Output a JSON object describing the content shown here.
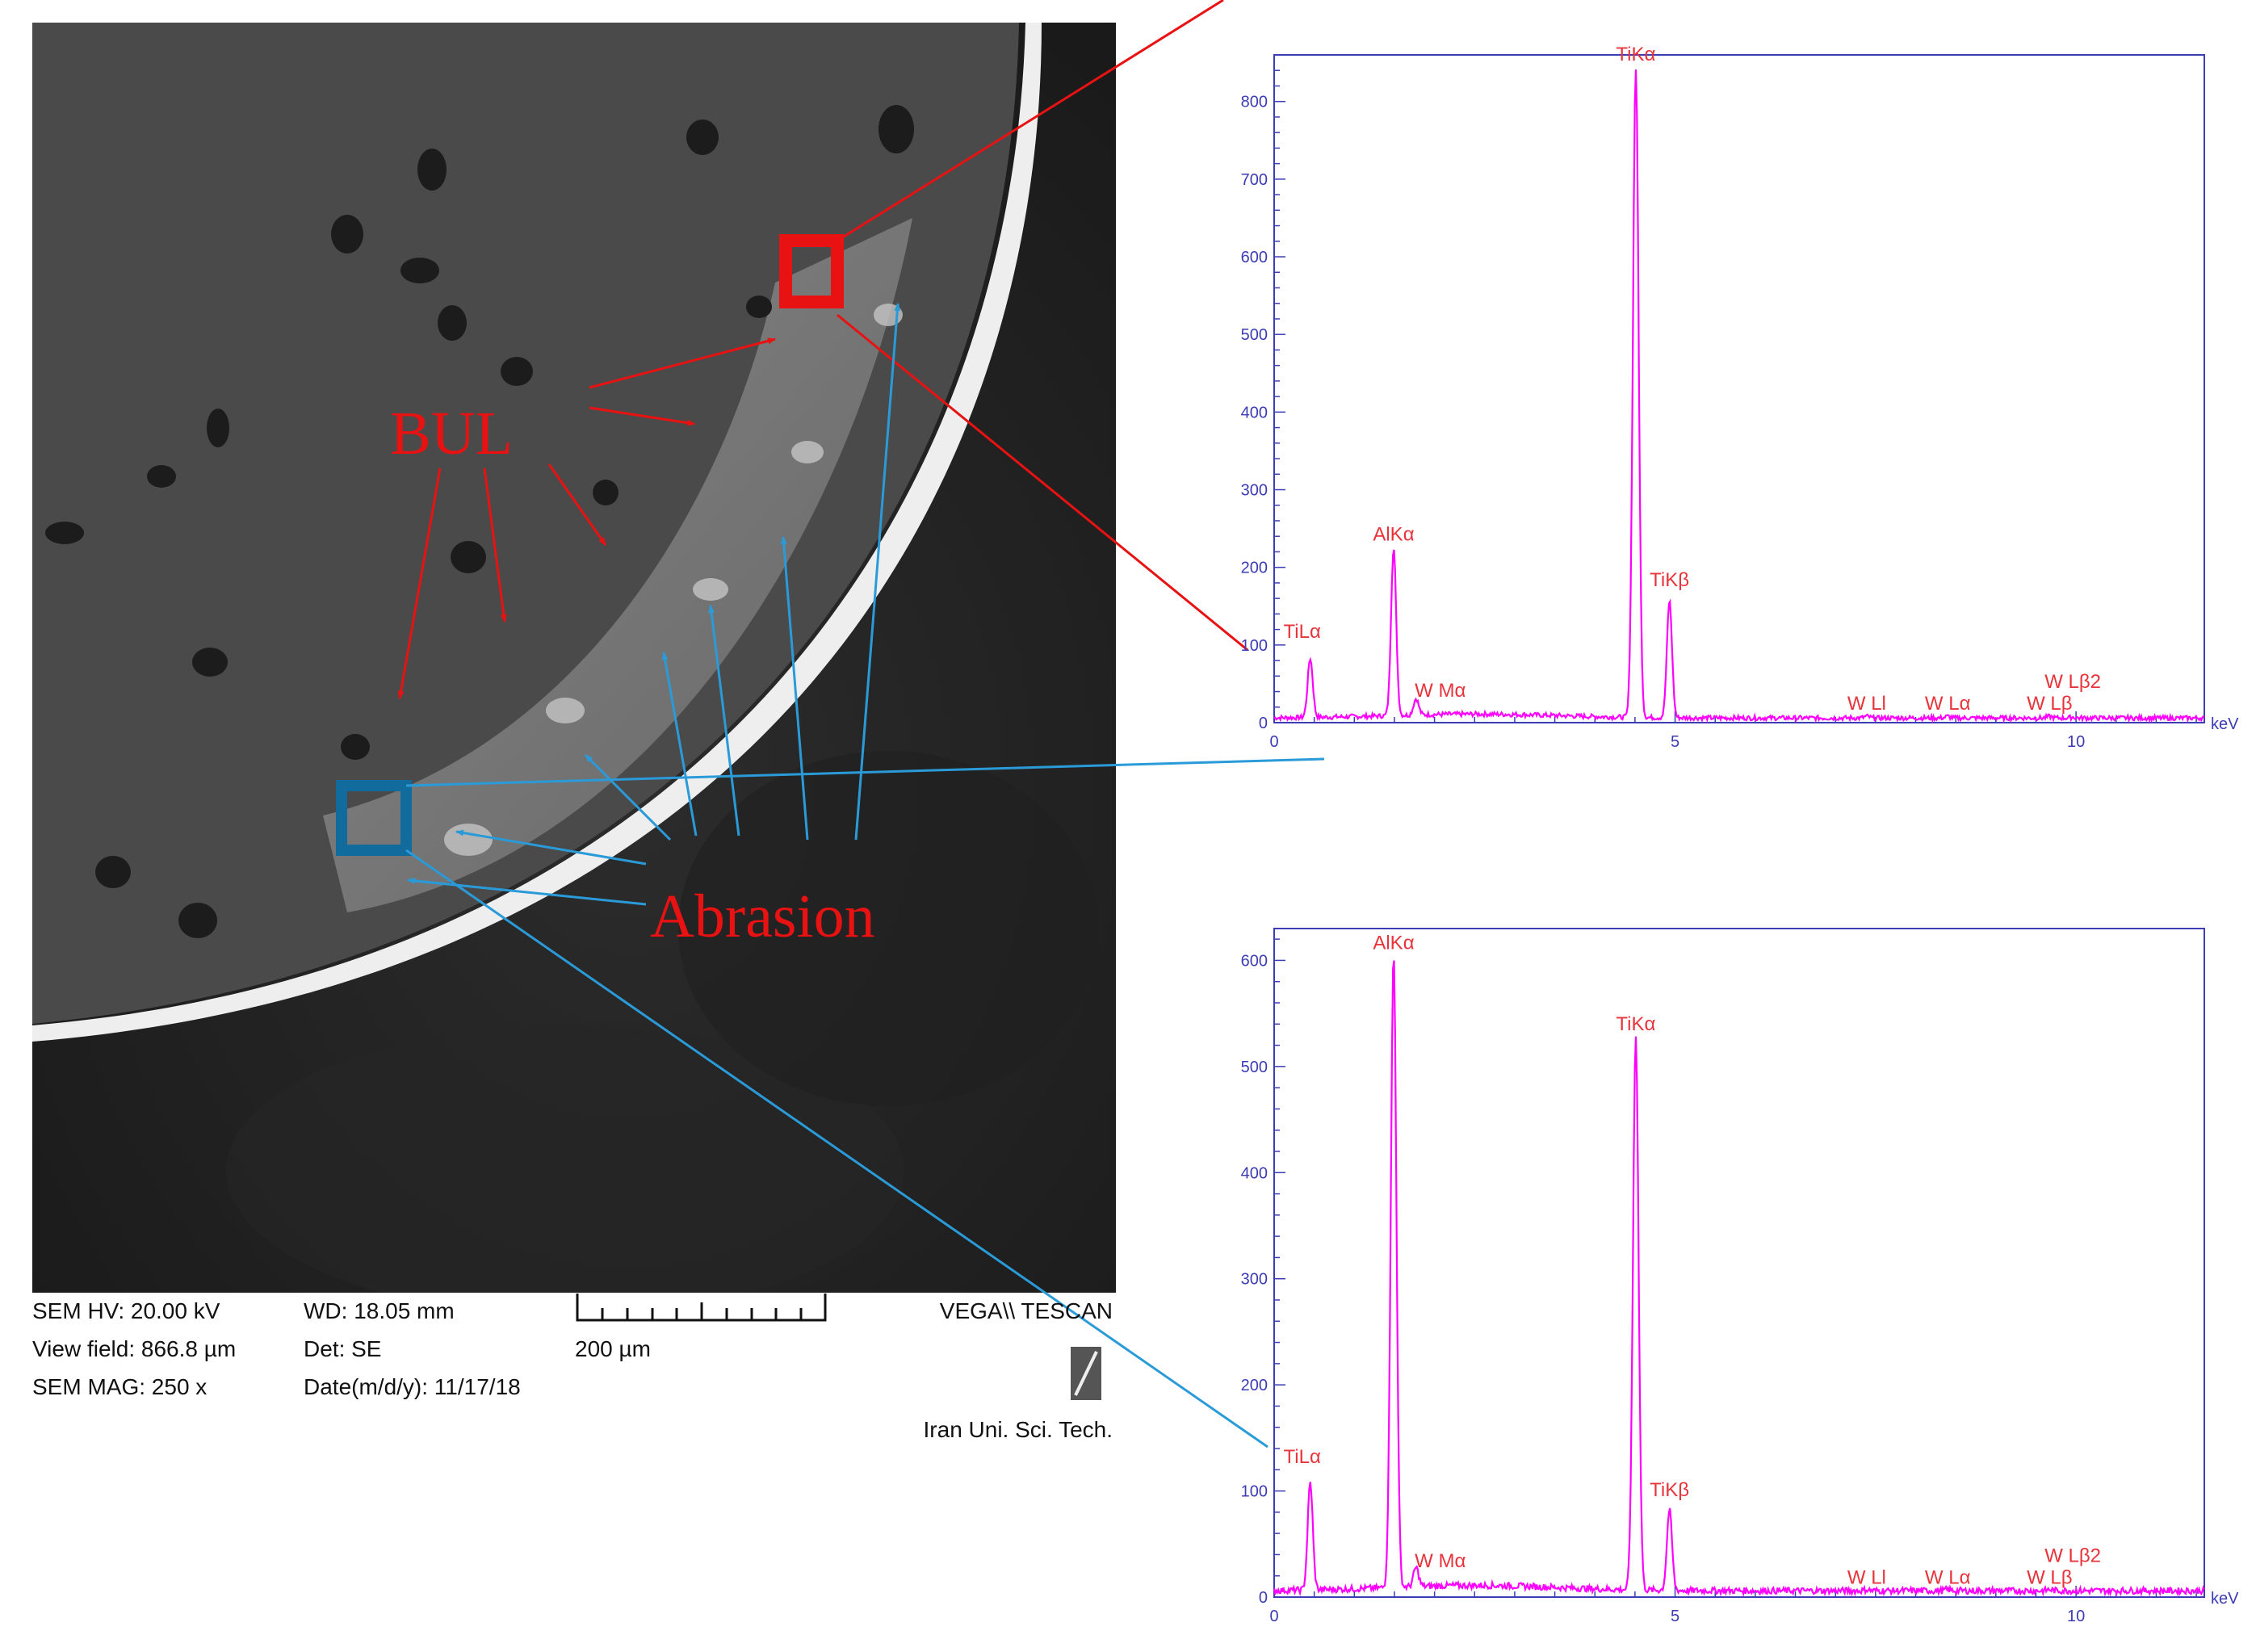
{
  "sem": {
    "hv": "SEM HV: 20.00 kV",
    "view_field": "View field: 866.8 µm",
    "mag": "SEM MAG: 250 x",
    "wd": "WD: 18.05 mm",
    "det": "Det: SE",
    "date": "Date(m/d/y): 11/17/18",
    "scale": "200 µm",
    "brand": "VEGA\\\\ TESCAN",
    "institution": "Iran Uni. Sci. Tech."
  },
  "annotations": {
    "bul": "BUL",
    "abrasion": "Abrasion"
  },
  "colors": {
    "bul": "#e81212",
    "abrasion": "#2a9bd8",
    "spectrum": "#ff00ff",
    "axis": "#3c3cb4",
    "peak_label": "#e8333b"
  },
  "chart_data": [
    {
      "type": "line",
      "region": "BUL",
      "xlabel": "keV",
      "xlim": [
        0,
        11.6
      ],
      "ylim": [
        0,
        860
      ],
      "x_ticks": [
        0,
        5,
        10
      ],
      "y_ticks": [
        0,
        100,
        200,
        300,
        400,
        500,
        600,
        700,
        800
      ],
      "peaks": [
        {
          "label": "TiLα",
          "x": 0.45,
          "y": 80
        },
        {
          "label": "AlKα",
          "x": 1.49,
          "y": 220
        },
        {
          "label": "W Mα",
          "x": 1.77,
          "y": 25
        },
        {
          "label": "TiKα",
          "x": 4.51,
          "y": 840
        },
        {
          "label": "TiKβ",
          "x": 4.93,
          "y": 155
        },
        {
          "label": "W Ll",
          "x": 7.39,
          "y": 6
        },
        {
          "label": "W Lα",
          "x": 8.4,
          "y": 6
        },
        {
          "label": "W Lβ",
          "x": 9.67,
          "y": 6
        },
        {
          "label": "W Lβ2",
          "x": 9.96,
          "y": 5
        }
      ]
    },
    {
      "type": "line",
      "region": "Abrasion",
      "xlabel": "keV",
      "xlim": [
        0,
        11.6
      ],
      "ylim": [
        0,
        630
      ],
      "x_ticks": [
        0,
        5,
        10
      ],
      "y_ticks": [
        0,
        100,
        200,
        300,
        400,
        500,
        600
      ],
      "peaks": [
        {
          "label": "TiLα",
          "x": 0.45,
          "y": 105
        },
        {
          "label": "AlKα",
          "x": 1.49,
          "y": 600
        },
        {
          "label": "W Mα",
          "x": 1.77,
          "y": 22
        },
        {
          "label": "TiKα",
          "x": 4.51,
          "y": 525
        },
        {
          "label": "TiKβ",
          "x": 4.93,
          "y": 80
        },
        {
          "label": "W Ll",
          "x": 7.39,
          "y": 5
        },
        {
          "label": "W Lα",
          "x": 8.4,
          "y": 5
        },
        {
          "label": "W Lβ",
          "x": 9.67,
          "y": 5
        },
        {
          "label": "W Lβ2",
          "x": 9.96,
          "y": 4
        }
      ]
    }
  ]
}
